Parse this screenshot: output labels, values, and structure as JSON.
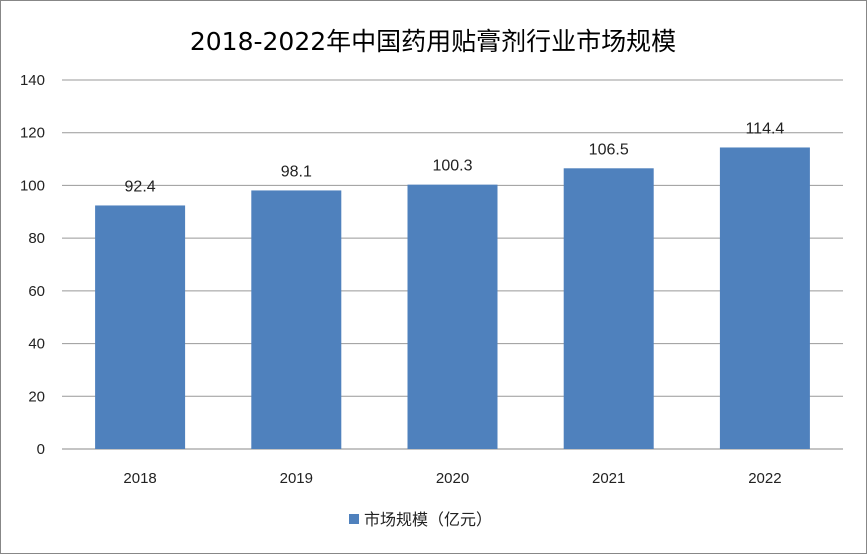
{
  "chart_data": {
    "type": "bar",
    "title": "2018-2022年中国药用贴膏剂行业市场规模",
    "categories": [
      "2018",
      "2019",
      "2020",
      "2021",
      "2022"
    ],
    "series": [
      {
        "name": "市场规模（亿元）",
        "values": [
          92.4,
          98.1,
          100.3,
          106.5,
          114.4
        ],
        "color": "#4F81BD"
      }
    ],
    "data_labels": [
      "92.4",
      "98.1",
      "100.3",
      "106.5",
      "114.4"
    ],
    "ylim": [
      0,
      140
    ],
    "yticks": [
      0,
      20,
      40,
      60,
      80,
      100,
      120,
      140
    ],
    "grid": true,
    "legend": "bottom"
  }
}
